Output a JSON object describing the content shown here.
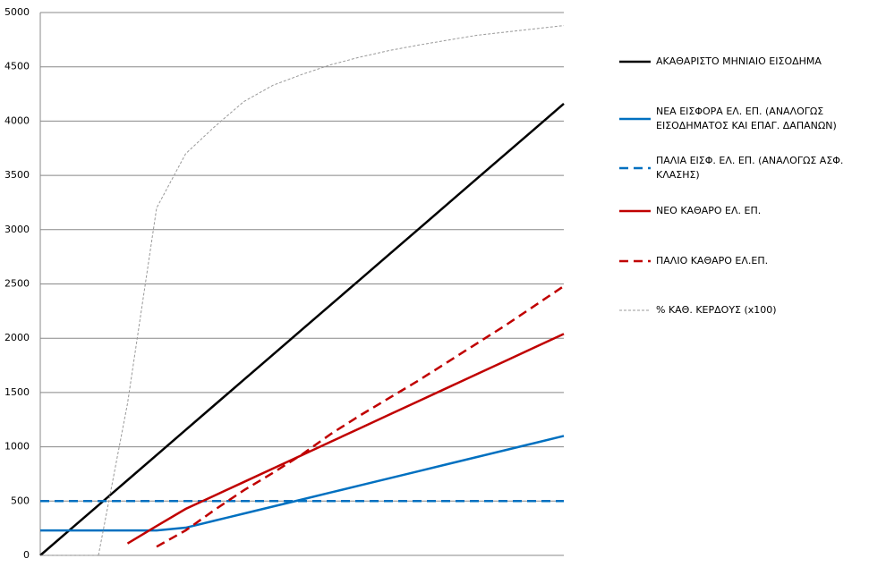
{
  "chart_data": {
    "type": "line",
    "categories": [
      null,
      null,
      null,
      null,
      null,
      null,
      null,
      null,
      null,
      null,
      null,
      null,
      null,
      null,
      null,
      null,
      null,
      null,
      null
    ],
    "ylim": [
      0,
      5000
    ],
    "yticks": [
      0,
      500,
      1000,
      1500,
      2000,
      2500,
      3000,
      3500,
      4000,
      4500,
      5000
    ],
    "grid": true,
    "legend": "right",
    "series": [
      {
        "name": "ΑΚΑΘΑΡΙΣΤΟ ΜΗΝΙΑΙΟ ΕΙΣΟΔΗΜΑ",
        "color": "#000000",
        "dash": "solid",
        "values": [
          0,
          231,
          462,
          693,
          924,
          1156,
          1387,
          1618,
          1849,
          2080,
          2311,
          2542,
          2773,
          3004,
          3236,
          3467,
          3698,
          3929,
          4160
        ]
      },
      {
        "name": "ΝΕΑ ΕΙΣΦΟΡΑ ΕΛ. ΕΠ. (ΑΝΑΛΟΓΩΣ ΕΙΣΟΔΗΜΑΤΟΣ ΚΑΙ ΕΠΑΓ. ΔΑΠΑΝΩΝ)",
        "color": "#0070c0",
        "dash": "solid",
        "values": [
          230,
          230,
          230,
          230,
          230,
          255,
          320,
          385,
          450,
          515,
          580,
          645,
          710,
          775,
          840,
          905,
          970,
          1035,
          1100
        ]
      },
      {
        "name": "ΠΑΛΙΑ ΕΙΣΦ. ΕΛ. ΕΠ. (ΑΝΑΛΟΓΩΣ ΑΣΦ. ΚΛΑΣΗΣ)",
        "color": "#0070c0",
        "dash": "dashed",
        "values": [
          500,
          500,
          500,
          500,
          500,
          500,
          500,
          500,
          500,
          500,
          500,
          500,
          500,
          500,
          500,
          500,
          500,
          500,
          500
        ]
      },
      {
        "name": "ΝΕΟ ΚΑΘΑΡΟ ΕΛ. ΕΠ.",
        "color": "#c00000",
        "dash": "solid",
        "values": [
          null,
          null,
          null,
          110,
          270,
          428,
          552,
          676,
          800,
          924,
          1048,
          1172,
          1296,
          1420,
          1544,
          1668,
          1792,
          1916,
          2040
        ]
      },
      {
        "name": "ΠΑΛΙΟ ΚΑΘΑΡΟ ΕΛ.ΕΠ.",
        "color": "#c00000",
        "dash": "dashed",
        "values": [
          null,
          null,
          null,
          null,
          80,
          230,
          420,
          600,
          760,
          930,
          1120,
          1290,
          1450,
          1610,
          1780,
          1950,
          2120,
          2300,
          2480
        ]
      },
      {
        "name": "% ΚΑΘ. ΚΕΡΔΟΥΣ (x100)",
        "color": "#999999",
        "dash": "dotted",
        "values": [
          0,
          0,
          0,
          1400,
          3200,
          3700,
          3950,
          4180,
          4330,
          4430,
          4520,
          4590,
          4650,
          4700,
          4745,
          4790,
          4820,
          4850,
          4880
        ]
      }
    ]
  }
}
